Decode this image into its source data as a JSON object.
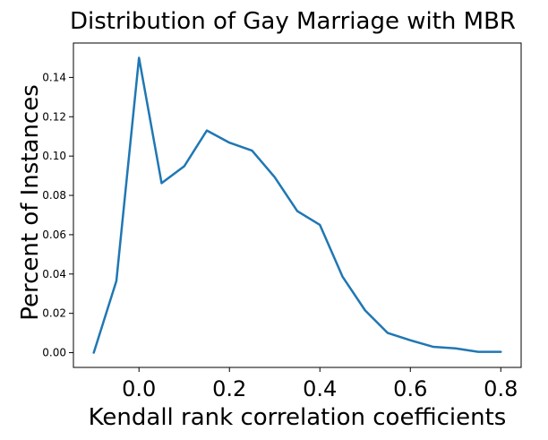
{
  "chart_data": {
    "type": "line",
    "title": "Distribution of Gay Marriage with MBR",
    "xlabel": "Kendall rank correlation coefficients",
    "ylabel": "Percent of Instances",
    "xlim": [
      -0.145,
      0.845
    ],
    "ylim": [
      -0.0075,
      0.1575
    ],
    "xticks": [
      0.0,
      0.2,
      0.4,
      0.6,
      0.8
    ],
    "xtick_labels": [
      "0.0",
      "0.2",
      "0.4",
      "0.6",
      "0.8"
    ],
    "yticks": [
      0.0,
      0.02,
      0.04,
      0.06,
      0.08,
      0.1,
      0.12,
      0.14
    ],
    "ytick_labels": [
      "0.00",
      "0.02",
      "0.04",
      "0.06",
      "0.08",
      "0.10",
      "0.12",
      "0.14"
    ],
    "grid": false,
    "line_color": "#1f77b4",
    "x": [
      -0.1,
      -0.05,
      0.0,
      0.05,
      0.1,
      0.15,
      0.2,
      0.25,
      0.3,
      0.35,
      0.4,
      0.45,
      0.5,
      0.55,
      0.6,
      0.65,
      0.7,
      0.75,
      0.8
    ],
    "y": [
      0.0,
      0.0365,
      0.15,
      0.0862,
      0.0948,
      0.113,
      0.1068,
      0.1028,
      0.0893,
      0.072,
      0.065,
      0.0387,
      0.0215,
      0.01,
      0.0063,
      0.003,
      0.0022,
      0.0004,
      0.0004
    ]
  }
}
